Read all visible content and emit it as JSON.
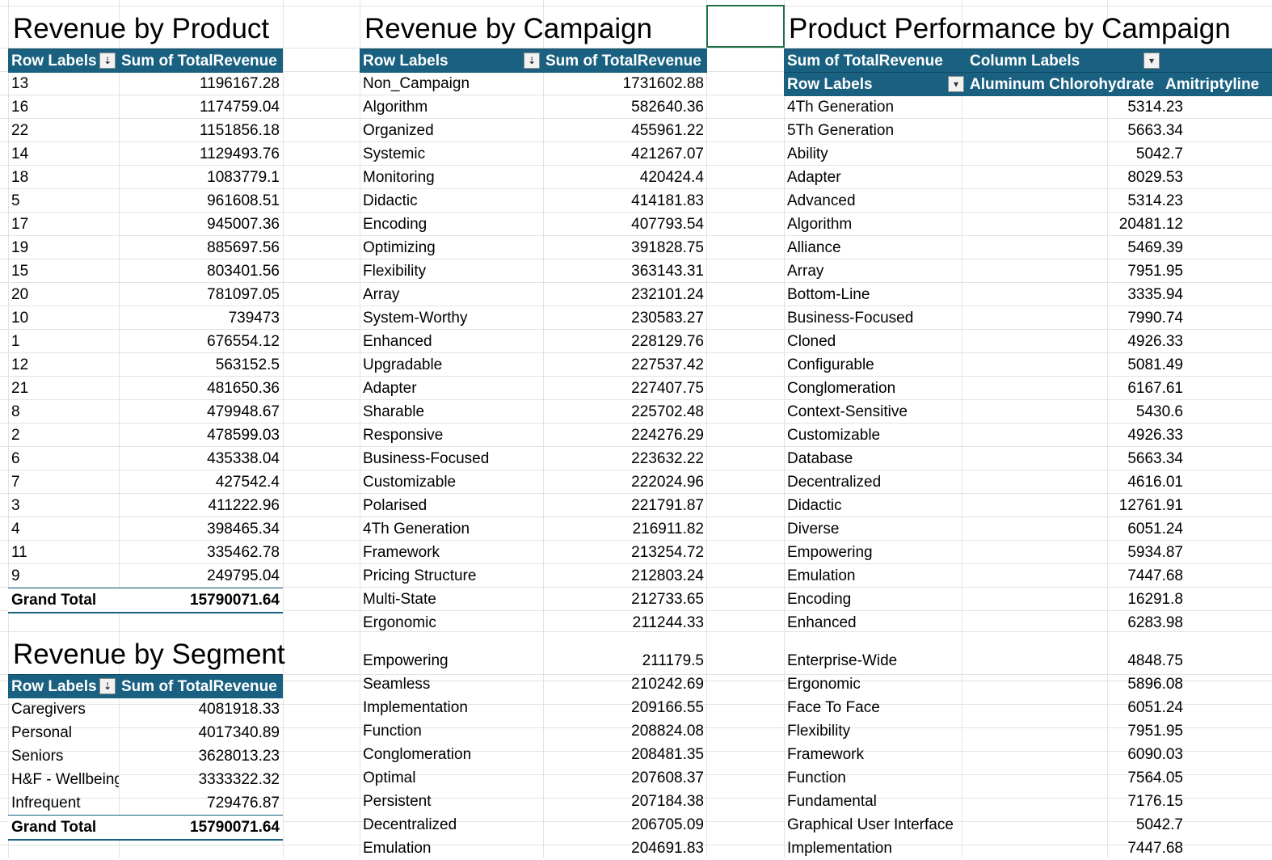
{
  "product": {
    "title": "Revenue by Product",
    "header": {
      "row_labels": "Row Labels",
      "sum": "Sum of TotalRevenue"
    },
    "rows": [
      {
        "label": "13",
        "value": "1196167.28"
      },
      {
        "label": "16",
        "value": "1174759.04"
      },
      {
        "label": "22",
        "value": "1151856.18"
      },
      {
        "label": "14",
        "value": "1129493.76"
      },
      {
        "label": "18",
        "value": "1083779.1"
      },
      {
        "label": "5",
        "value": "961608.51"
      },
      {
        "label": "17",
        "value": "945007.36"
      },
      {
        "label": "19",
        "value": "885697.56"
      },
      {
        "label": "15",
        "value": "803401.56"
      },
      {
        "label": "20",
        "value": "781097.05"
      },
      {
        "label": "10",
        "value": "739473"
      },
      {
        "label": "1",
        "value": "676554.12"
      },
      {
        "label": "12",
        "value": "563152.5"
      },
      {
        "label": "21",
        "value": "481650.36"
      },
      {
        "label": "8",
        "value": "479948.67"
      },
      {
        "label": "2",
        "value": "478599.03"
      },
      {
        "label": "6",
        "value": "435338.04"
      },
      {
        "label": "7",
        "value": "427542.4"
      },
      {
        "label": "3",
        "value": "411222.96"
      },
      {
        "label": "4",
        "value": "398465.34"
      },
      {
        "label": "11",
        "value": "335462.78"
      },
      {
        "label": "9",
        "value": "249795.04"
      }
    ],
    "grand_total": {
      "label": "Grand Total",
      "value": "15790071.64"
    }
  },
  "segment": {
    "title": "Revenue by Segment",
    "header": {
      "row_labels": "Row Labels",
      "sum": "Sum of TotalRevenue"
    },
    "rows": [
      {
        "label": "Caregivers",
        "value": "4081918.33"
      },
      {
        "label": "Personal",
        "value": "4017340.89"
      },
      {
        "label": "Seniors",
        "value": "3628013.23"
      },
      {
        "label": "H&F - Wellbeing",
        "value": "3333322.32"
      },
      {
        "label": "Infrequent",
        "value": "729476.87"
      }
    ],
    "grand_total": {
      "label": "Grand Total",
      "value": "15790071.64"
    }
  },
  "campaign": {
    "title": "Revenue by Campaign",
    "header": {
      "row_labels": "Row Labels",
      "sum": "Sum of TotalRevenue"
    },
    "rows": [
      {
        "label": "Non_Campaign",
        "value": "1731602.88"
      },
      {
        "label": "Algorithm",
        "value": "582640.36"
      },
      {
        "label": "Organized",
        "value": "455961.22"
      },
      {
        "label": "Systemic",
        "value": "421267.07"
      },
      {
        "label": "Monitoring",
        "value": "420424.4"
      },
      {
        "label": "Didactic",
        "value": "414181.83"
      },
      {
        "label": "Encoding",
        "value": "407793.54"
      },
      {
        "label": "Optimizing",
        "value": "391828.75"
      },
      {
        "label": "Flexibility",
        "value": "363143.31"
      },
      {
        "label": "Array",
        "value": "232101.24"
      },
      {
        "label": "System-Worthy",
        "value": "230583.27"
      },
      {
        "label": "Enhanced",
        "value": "228129.76"
      },
      {
        "label": "Upgradable",
        "value": "227537.42"
      },
      {
        "label": "Adapter",
        "value": "227407.75"
      },
      {
        "label": "Sharable",
        "value": "225702.48"
      },
      {
        "label": "Responsive",
        "value": "224276.29"
      },
      {
        "label": "Business-Focused",
        "value": "223632.22"
      },
      {
        "label": "Customizable",
        "value": "222024.96"
      },
      {
        "label": "Polarised",
        "value": "221791.87"
      },
      {
        "label": "4Th Generation",
        "value": "216911.82"
      },
      {
        "label": "Framework",
        "value": "213254.72"
      },
      {
        "label": "Pricing Structure",
        "value": "212803.24"
      },
      {
        "label": "Multi-State",
        "value": "212733.65"
      },
      {
        "label": "Ergonomic",
        "value": "211244.33"
      },
      {
        "label": "Empowering",
        "value": "211179.5"
      },
      {
        "label": "Seamless",
        "value": "210242.69"
      },
      {
        "label": "Implementation",
        "value": "209166.55"
      },
      {
        "label": "Function",
        "value": "208824.08"
      },
      {
        "label": "Conglomeration",
        "value": "208481.35"
      },
      {
        "label": "Optimal",
        "value": "207608.37"
      },
      {
        "label": "Persistent",
        "value": "207184.38"
      },
      {
        "label": "Decentralized",
        "value": "206705.09"
      },
      {
        "label": "Emulation",
        "value": "204691.83"
      }
    ]
  },
  "performance": {
    "title": "Product Performance by Campaign",
    "header": {
      "sum": "Sum of TotalRevenue",
      "column_labels": "Column Labels",
      "row_labels": "Row Labels",
      "col1": "Aluminum Chlorohydrate",
      "col2": "Amitriptyline"
    },
    "rows": [
      {
        "label": "4Th Generation",
        "value": "5314.23"
      },
      {
        "label": "5Th Generation",
        "value": "5663.34"
      },
      {
        "label": "Ability",
        "value": "5042.7"
      },
      {
        "label": "Adapter",
        "value": "8029.53"
      },
      {
        "label": "Advanced",
        "value": "5314.23"
      },
      {
        "label": "Algorithm",
        "value": "20481.12"
      },
      {
        "label": "Alliance",
        "value": "5469.39"
      },
      {
        "label": "Array",
        "value": "7951.95"
      },
      {
        "label": "Bottom-Line",
        "value": "3335.94"
      },
      {
        "label": "Business-Focused",
        "value": "7990.74"
      },
      {
        "label": "Cloned",
        "value": "4926.33"
      },
      {
        "label": "Configurable",
        "value": "5081.49"
      },
      {
        "label": "Conglomeration",
        "value": "6167.61"
      },
      {
        "label": "Context-Sensitive",
        "value": "5430.6"
      },
      {
        "label": "Customizable",
        "value": "4926.33"
      },
      {
        "label": "Database",
        "value": "5663.34"
      },
      {
        "label": "Decentralized",
        "value": "4616.01"
      },
      {
        "label": "Didactic",
        "value": "12761.91"
      },
      {
        "label": "Diverse",
        "value": "6051.24"
      },
      {
        "label": "Empowering",
        "value": "5934.87"
      },
      {
        "label": "Emulation",
        "value": "7447.68"
      },
      {
        "label": "Encoding",
        "value": "16291.8"
      },
      {
        "label": "Enhanced",
        "value": "6283.98"
      },
      {
        "label": "Enterprise-Wide",
        "value": "4848.75"
      },
      {
        "label": "Ergonomic",
        "value": "5896.08"
      },
      {
        "label": "Face To Face",
        "value": "6051.24"
      },
      {
        "label": "Flexibility",
        "value": "7951.95"
      },
      {
        "label": "Framework",
        "value": "6090.03"
      },
      {
        "label": "Function",
        "value": "7564.05"
      },
      {
        "label": "Fundamental",
        "value": "7176.15"
      },
      {
        "label": "Graphical User Interface",
        "value": "5042.7"
      },
      {
        "label": "Implementation",
        "value": "7447.68"
      }
    ]
  }
}
